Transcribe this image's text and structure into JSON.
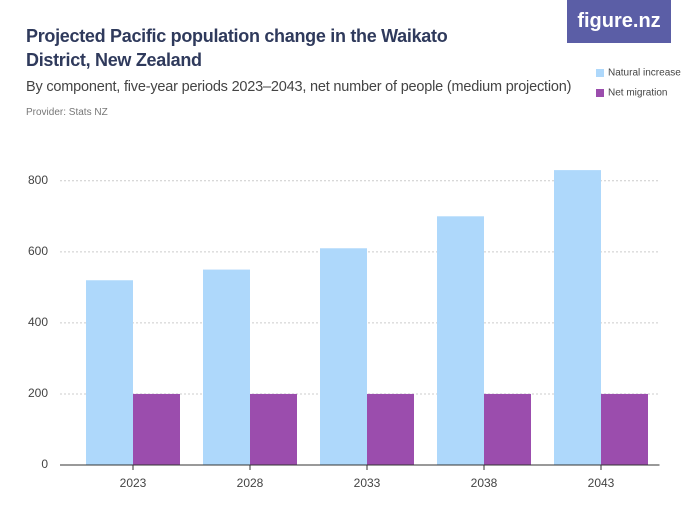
{
  "chart_data": {
    "type": "bar",
    "title": "Projected Pacific population change in the Waikato District, New Zealand",
    "subtitle": "By component, five-year periods 2023–2043, net number of people (medium projection)",
    "provider": "Provider: Stats NZ",
    "logo": "figure.nz",
    "categories": [
      "2023",
      "2028",
      "2033",
      "2038",
      "2043"
    ],
    "series": [
      {
        "name": "Natural increase",
        "color": "#aed8fb",
        "values": [
          520,
          550,
          610,
          700,
          830
        ]
      },
      {
        "name": "Net migration",
        "color": "#9b4dad",
        "values": [
          200,
          200,
          200,
          200,
          200
        ]
      }
    ],
    "ylim": [
      0,
      850
    ],
    "yticks": [
      0,
      200,
      400,
      600,
      800
    ],
    "grid": true,
    "legend": "top-right"
  }
}
